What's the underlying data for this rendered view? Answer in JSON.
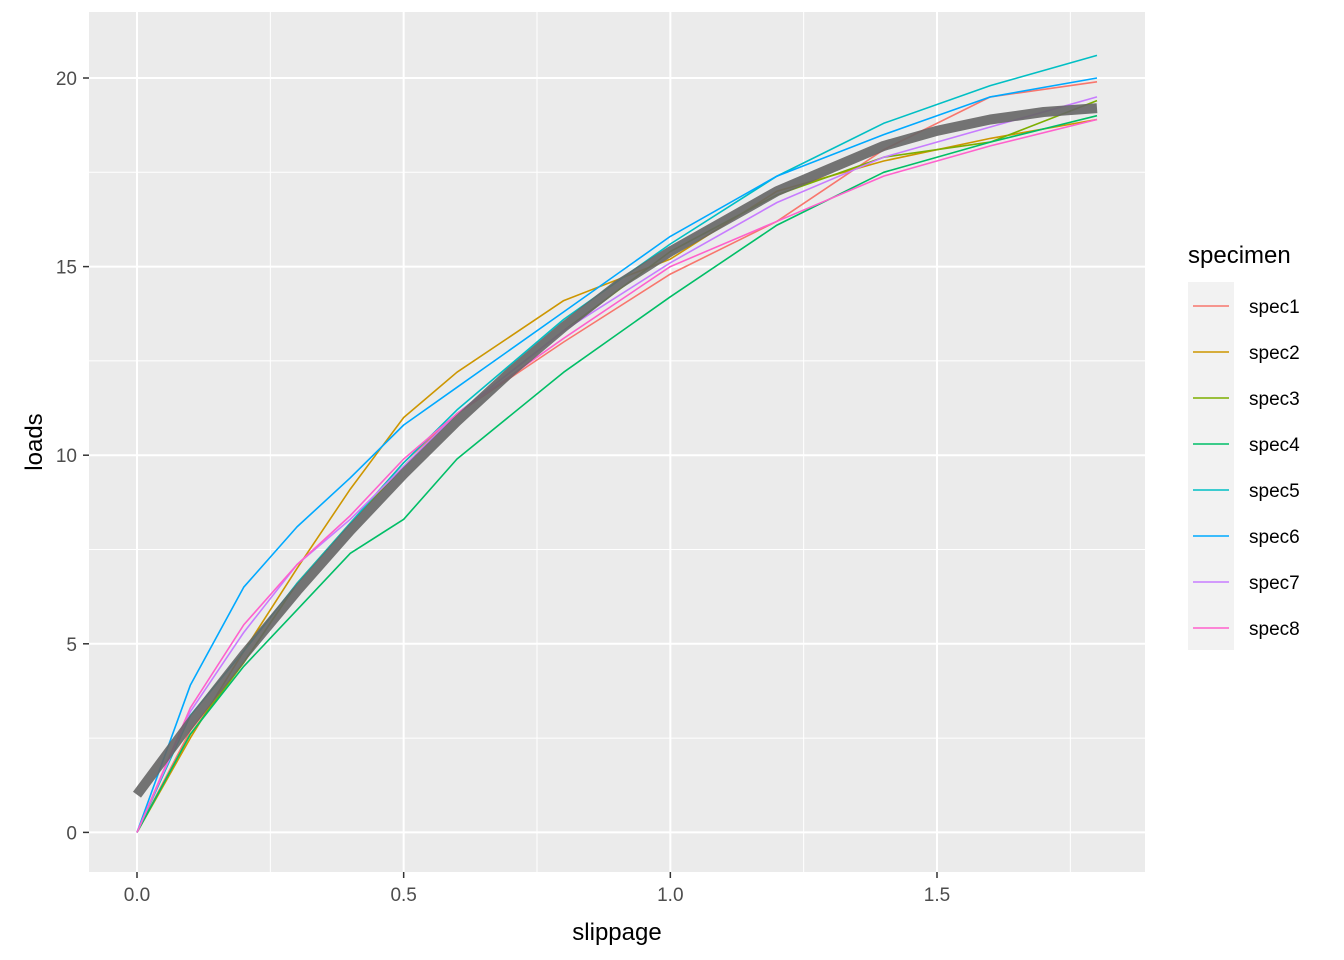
{
  "chart_data": {
    "type": "line",
    "xlabel": "slippage",
    "ylabel": "loads",
    "xlim": [
      -0.09,
      1.89
    ],
    "ylim": [
      -1.05,
      21.75
    ],
    "x_ticks": [
      0.0,
      0.5,
      1.0,
      1.5
    ],
    "x_tick_labels": [
      "0.0",
      "0.5",
      "1.0",
      "1.5"
    ],
    "y_ticks": [
      0,
      5,
      10,
      15,
      20
    ],
    "y_tick_labels": [
      "0",
      "5",
      "10",
      "15",
      "20"
    ],
    "grid": true,
    "legend": {
      "title": "specimen",
      "placement": "right"
    },
    "x": [
      0.0,
      0.1,
      0.2,
      0.3,
      0.4,
      0.5,
      0.6,
      0.8,
      1.0,
      1.2,
      1.4,
      1.6,
      1.8
    ],
    "series": [
      {
        "name": "spec1",
        "color": "#F8766D",
        "values": [
          0.0,
          2.7,
          4.5,
          6.6,
          8.2,
          9.8,
          11.1,
          13.0,
          14.8,
          16.2,
          18.1,
          19.5,
          19.9
        ]
      },
      {
        "name": "spec2",
        "color": "#CD9600",
        "values": [
          0.0,
          2.5,
          4.8,
          7.0,
          9.1,
          11.0,
          12.2,
          14.1,
          15.2,
          17.0,
          17.8,
          18.4,
          18.9
        ]
      },
      {
        "name": "spec3",
        "color": "#7CAE00",
        "values": [
          0.0,
          2.6,
          4.5,
          6.6,
          8.2,
          9.7,
          11.1,
          13.3,
          15.4,
          16.9,
          17.9,
          18.3,
          19.4
        ]
      },
      {
        "name": "spec4",
        "color": "#00BE67",
        "values": [
          0.0,
          2.6,
          4.4,
          5.9,
          7.4,
          8.3,
          9.9,
          12.2,
          14.2,
          16.1,
          17.5,
          18.3,
          19.0
        ]
      },
      {
        "name": "spec5",
        "color": "#00BFC4",
        "values": [
          0.0,
          3.1,
          4.8,
          6.6,
          8.2,
          9.8,
          11.2,
          13.6,
          15.6,
          17.4,
          18.8,
          19.8,
          20.6
        ]
      },
      {
        "name": "spec6",
        "color": "#00A9FF",
        "values": [
          0.0,
          3.9,
          6.5,
          8.1,
          9.4,
          10.8,
          11.8,
          13.8,
          15.8,
          17.4,
          18.5,
          19.5,
          20.0
        ]
      },
      {
        "name": "spec7",
        "color": "#C77CFF",
        "values": [
          0.0,
          3.2,
          5.3,
          7.1,
          8.3,
          9.7,
          11.1,
          13.3,
          15.1,
          16.7,
          17.9,
          18.7,
          19.5
        ]
      },
      {
        "name": "spec8",
        "color": "#FF61CC",
        "values": [
          0.0,
          3.3,
          5.5,
          7.1,
          8.4,
          9.9,
          11.1,
          13.1,
          15.0,
          16.2,
          17.4,
          18.2,
          18.9
        ]
      }
    ],
    "fit_line": {
      "color": "#666666",
      "x": [
        0.0,
        0.1,
        0.2,
        0.3,
        0.4,
        0.5,
        0.6,
        0.7,
        0.8,
        0.9,
        1.0,
        1.1,
        1.2,
        1.3,
        1.4,
        1.5,
        1.6,
        1.7,
        1.8
      ],
      "values": [
        1.0,
        2.9,
        4.7,
        6.4,
        8.0,
        9.5,
        10.9,
        12.2,
        13.4,
        14.5,
        15.4,
        16.2,
        17.0,
        17.6,
        18.2,
        18.6,
        18.9,
        19.1,
        19.2
      ]
    }
  }
}
